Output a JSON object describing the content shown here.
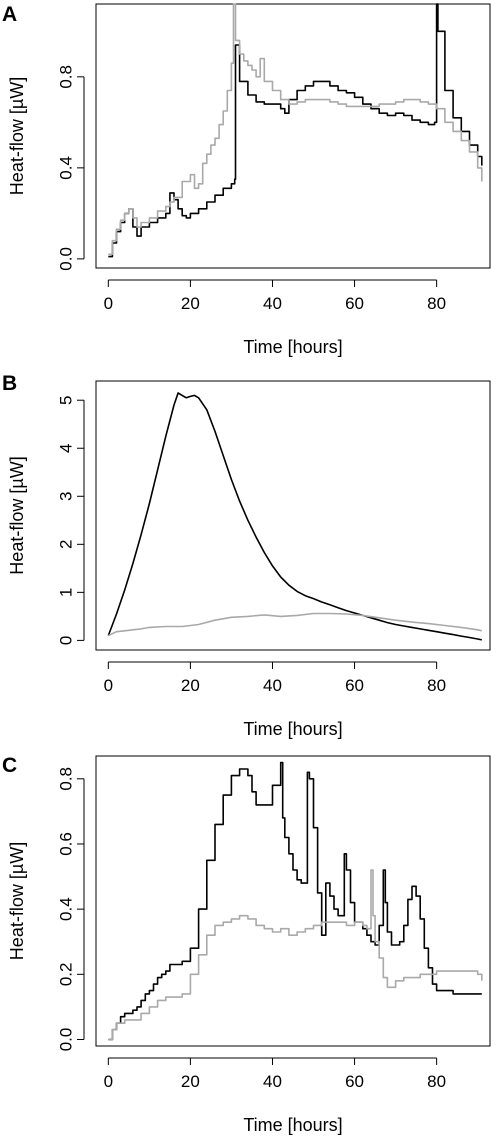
{
  "panels": [
    {
      "label": "A",
      "chart_data": {
        "type": "line",
        "title": "",
        "xlabel": "Time [hours]",
        "ylabel": "Heat-flow [µW]",
        "xlim": [
          -3,
          93
        ],
        "ylim": [
          -0.04,
          1.12
        ],
        "xticks": [
          0,
          20,
          40,
          60,
          80
        ],
        "yticks": [
          0.0,
          0.4,
          0.8
        ],
        "ytick_labels": [
          "0.0",
          "0.4",
          "0.8"
        ],
        "grid": false,
        "series": [
          {
            "color": "#000000",
            "step": true,
            "x": [
              0,
              1,
              2,
              3,
              4,
              5,
              6,
              7,
              8,
              10,
              12,
              14,
              15,
              16,
              17,
              18,
              19,
              20,
              22,
              24,
              26,
              28,
              30,
              30.8,
              31,
              32,
              34,
              36,
              38,
              40,
              42,
              43,
              44,
              46,
              48,
              50,
              52,
              54,
              56,
              58,
              60,
              62,
              64,
              66,
              68,
              70,
              72,
              74,
              76,
              78,
              79.5,
              80,
              80.3,
              82,
              84,
              86,
              88,
              90,
              91
            ],
            "y": [
              0.01,
              0.07,
              0.12,
              0.16,
              0.2,
              0.22,
              0.14,
              0.1,
              0.14,
              0.16,
              0.18,
              0.2,
              0.29,
              0.26,
              0.22,
              0.19,
              0.18,
              0.2,
              0.22,
              0.25,
              0.28,
              0.31,
              0.33,
              0.35,
              0.94,
              0.78,
              0.72,
              0.69,
              0.68,
              0.68,
              0.66,
              0.64,
              0.7,
              0.74,
              0.76,
              0.78,
              0.78,
              0.76,
              0.74,
              0.73,
              0.71,
              0.68,
              0.66,
              0.64,
              0.63,
              0.64,
              0.63,
              0.61,
              0.6,
              0.59,
              0.6,
              1.12,
              1.0,
              0.74,
              0.62,
              0.56,
              0.5,
              0.45,
              0.41
            ]
          },
          {
            "color": "#a9a9a9",
            "step": true,
            "x": [
              0,
              1,
              2,
              3,
              4,
              5,
              6,
              7,
              8,
              10,
              12,
              14,
              15,
              16,
              18,
              20,
              21,
              22,
              23,
              24,
              25,
              26,
              27,
              28,
              29,
              30,
              30.5,
              31,
              32,
              33,
              34,
              35,
              36,
              37,
              38,
              40,
              42,
              44,
              46,
              48,
              50,
              52,
              54,
              56,
              58,
              60,
              62,
              64,
              66,
              68,
              70,
              72,
              74,
              76,
              78,
              80,
              82,
              84,
              86,
              88,
              90,
              91
            ],
            "y": [
              0.02,
              0.08,
              0.13,
              0.17,
              0.2,
              0.22,
              0.18,
              0.14,
              0.16,
              0.18,
              0.21,
              0.23,
              0.25,
              0.27,
              0.34,
              0.37,
              0.31,
              0.33,
              0.42,
              0.46,
              0.5,
              0.53,
              0.59,
              0.65,
              0.74,
              0.86,
              1.12,
              0.96,
              0.9,
              0.87,
              0.85,
              0.83,
              0.8,
              0.88,
              0.78,
              0.74,
              0.7,
              0.68,
              0.69,
              0.7,
              0.7,
              0.7,
              0.69,
              0.68,
              0.67,
              0.67,
              0.67,
              0.67,
              0.68,
              0.68,
              0.69,
              0.7,
              0.7,
              0.69,
              0.68,
              0.66,
              0.6,
              0.56,
              0.52,
              0.47,
              0.4,
              0.34
            ]
          }
        ]
      }
    },
    {
      "label": "B",
      "chart_data": {
        "type": "line",
        "title": "",
        "xlabel": "Time [hours]",
        "ylabel": "Heat-flow [µW]",
        "xlim": [
          -3,
          93
        ],
        "ylim": [
          -0.2,
          5.4
        ],
        "xticks": [
          0,
          20,
          40,
          60,
          80
        ],
        "yticks": [
          0,
          1,
          2,
          3,
          4,
          5
        ],
        "ytick_labels": [
          "0",
          "1",
          "2",
          "3",
          "4",
          "5"
        ],
        "grid": false,
        "series": [
          {
            "color": "#000000",
            "step": false,
            "x": [
              0,
              2,
              4,
              6,
              8,
              10,
              12,
              14,
              16,
              17,
              18,
              19,
              20,
              21,
              22,
              24,
              26,
              28,
              30,
              32,
              34,
              36,
              38,
              40,
              42,
              44,
              46,
              48,
              50,
              52,
              54,
              56,
              58,
              60,
              62,
              64,
              66,
              68,
              70,
              72,
              74,
              76,
              78,
              80,
              82,
              84,
              86,
              88,
              90,
              91
            ],
            "y": [
              0.1,
              0.55,
              1.05,
              1.6,
              2.2,
              2.85,
              3.55,
              4.25,
              4.9,
              5.15,
              5.1,
              5.05,
              5.08,
              5.1,
              5.05,
              4.8,
              4.35,
              3.85,
              3.35,
              2.9,
              2.5,
              2.15,
              1.83,
              1.55,
              1.32,
              1.15,
              1.02,
              0.93,
              0.87,
              0.8,
              0.74,
              0.68,
              0.62,
              0.57,
              0.52,
              0.47,
              0.42,
              0.37,
              0.33,
              0.3,
              0.27,
              0.24,
              0.21,
              0.18,
              0.15,
              0.12,
              0.09,
              0.06,
              0.03,
              0.01
            ]
          },
          {
            "color": "#a9a9a9",
            "step": false,
            "x": [
              0,
              2,
              4,
              6,
              8,
              10,
              14,
              18,
              22,
              26,
              30,
              34,
              38,
              42,
              46,
              50,
              54,
              58,
              62,
              66,
              70,
              74,
              78,
              82,
              86,
              90,
              91
            ],
            "y": [
              0.1,
              0.18,
              0.2,
              0.22,
              0.24,
              0.27,
              0.29,
              0.29,
              0.33,
              0.42,
              0.48,
              0.5,
              0.53,
              0.5,
              0.52,
              0.56,
              0.56,
              0.55,
              0.52,
              0.47,
              0.42,
              0.38,
              0.35,
              0.31,
              0.27,
              0.22,
              0.2
            ]
          }
        ]
      }
    },
    {
      "label": "C",
      "chart_data": {
        "type": "line",
        "title": "",
        "xlabel": "Time [hours]",
        "ylabel": "Heat-flow [µW]",
        "xlim": [
          -3,
          93
        ],
        "ylim": [
          -0.02,
          0.87
        ],
        "xticks": [
          0,
          20,
          40,
          60,
          80
        ],
        "yticks": [
          0.0,
          0.2,
          0.4,
          0.6,
          0.8
        ],
        "ytick_labels": [
          "0.0",
          "0.2",
          "0.4",
          "0.6",
          "0.8"
        ],
        "grid": false,
        "series": [
          {
            "color": "#000000",
            "step": true,
            "x": [
              0,
              1,
              2,
              3,
              4,
              5,
              6,
              7,
              8,
              9,
              10,
              11,
              12,
              13,
              14,
              15,
              16,
              18,
              20,
              22,
              24,
              26,
              28,
              30,
              32,
              33,
              34,
              35,
              36,
              37,
              38,
              40,
              41,
              42,
              42.5,
              43,
              44,
              45,
              46,
              47,
              48,
              48.5,
              49,
              50,
              51,
              52,
              53,
              54,
              55,
              56,
              57,
              57.5,
              58,
              59,
              60,
              61,
              62,
              63,
              64,
              65,
              66,
              67,
              67.5,
              68,
              69,
              70,
              71,
              72,
              73,
              74,
              75,
              76,
              77,
              78,
              79,
              80,
              82,
              84,
              86,
              88,
              90,
              91
            ],
            "y": [
              0.0,
              0.03,
              0.05,
              0.07,
              0.08,
              0.08,
              0.09,
              0.1,
              0.12,
              0.14,
              0.15,
              0.17,
              0.19,
              0.2,
              0.21,
              0.23,
              0.23,
              0.24,
              0.28,
              0.4,
              0.55,
              0.66,
              0.75,
              0.81,
              0.83,
              0.83,
              0.81,
              0.76,
              0.72,
              0.72,
              0.72,
              0.78,
              0.78,
              0.85,
              0.68,
              0.62,
              0.57,
              0.52,
              0.49,
              0.48,
              0.48,
              0.82,
              0.8,
              0.65,
              0.45,
              0.32,
              0.48,
              0.44,
              0.4,
              0.38,
              0.38,
              0.57,
              0.52,
              0.42,
              0.36,
              0.36,
              0.34,
              0.32,
              0.3,
              0.29,
              0.35,
              0.52,
              0.42,
              0.33,
              0.29,
              0.29,
              0.3,
              0.35,
              0.43,
              0.47,
              0.44,
              0.37,
              0.28,
              0.22,
              0.17,
              0.15,
              0.15,
              0.14,
              0.14,
              0.14,
              0.14,
              0.14
            ]
          },
          {
            "color": "#a9a9a9",
            "step": true,
            "x": [
              0,
              1,
              2,
              4,
              6,
              8,
              10,
              12,
              14,
              16,
              18,
              20,
              22,
              24,
              26,
              28,
              30,
              32,
              34,
              36,
              38,
              40,
              42,
              44,
              46,
              48,
              50,
              52,
              54,
              56,
              58,
              60,
              62,
              63,
              64,
              64.5,
              65,
              66,
              67,
              68,
              69,
              70,
              72,
              74,
              76,
              78,
              80,
              82,
              84,
              86,
              88,
              90,
              91
            ],
            "y": [
              0.0,
              0.03,
              0.05,
              0.06,
              0.06,
              0.08,
              0.1,
              0.12,
              0.13,
              0.13,
              0.14,
              0.2,
              0.26,
              0.32,
              0.35,
              0.36,
              0.37,
              0.38,
              0.37,
              0.35,
              0.34,
              0.33,
              0.34,
              0.32,
              0.33,
              0.34,
              0.35,
              0.36,
              0.36,
              0.36,
              0.35,
              0.36,
              0.35,
              0.34,
              0.52,
              0.38,
              0.3,
              0.25,
              0.19,
              0.16,
              0.16,
              0.18,
              0.19,
              0.19,
              0.2,
              0.2,
              0.21,
              0.21,
              0.21,
              0.21,
              0.21,
              0.2,
              0.18
            ]
          }
        ]
      }
    }
  ]
}
